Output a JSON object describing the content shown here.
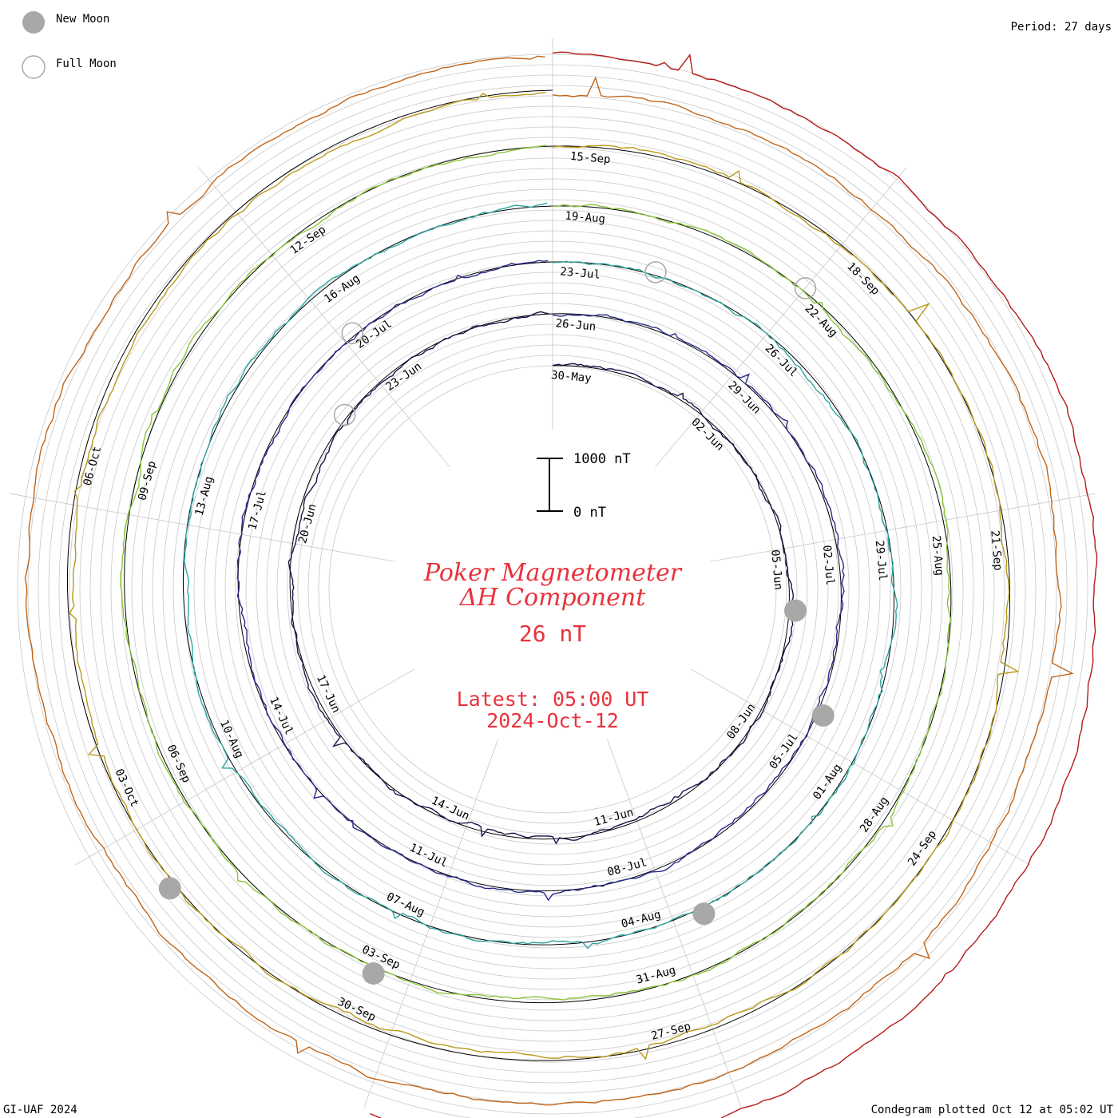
{
  "legend": {
    "new_moon": "New Moon",
    "full_moon": "Full Moon"
  },
  "period": "Period: 27 days",
  "scale_bar": {
    "top_label": "1000 nT",
    "bottom_label": "0 nT",
    "top_value": 1000,
    "bottom_value": 0
  },
  "title_line1": "Poker Magnetometer",
  "title_line2": "ΔH Component",
  "current_value": "26 nT",
  "latest_line1": "Latest: 05:00 UT",
  "latest_line2": "2024-Oct-12",
  "footer_left": "GI-UAF 2024",
  "footer_right": "Condegram plotted Oct 12 at 05:02 UT",
  "colors": {
    "annotation": "#e8323c",
    "ring_grid": "#c8c8c8",
    "spokes": "#c8c8c8",
    "moon_fill": "#a8a8a8",
    "moon_stroke": "#a8a8a8"
  },
  "chart_data": {
    "type": "condegram",
    "period_days": 27,
    "units": "nT",
    "date_labels": [
      [
        "30-May",
        "02-Jun",
        "05-Jun",
        "08-Jun",
        "11-Jun",
        "14-Jun",
        "17-Jun",
        "20-Jun",
        "23-Jun"
      ],
      [
        "26-Jun",
        "29-Jun",
        "02-Jul",
        "05-Jul",
        "08-Jul",
        "11-Jul",
        "14-Jul",
        "17-Jul",
        "20-Jul"
      ],
      [
        "23-Jul",
        "26-Jul",
        "29-Jul",
        "01-Aug",
        "04-Aug",
        "07-Aug",
        "10-Aug",
        "13-Aug",
        "16-Aug"
      ],
      [
        "19-Aug",
        "22-Aug",
        "25-Aug",
        "28-Aug",
        "31-Aug",
        "03-Sep",
        "06-Sep",
        "09-Sep",
        "12-Sep"
      ],
      [
        "15-Sep",
        "18-Sep",
        "21-Sep",
        "24-Sep",
        "27-Sep",
        "30-Sep",
        "03-Oct",
        "06-Oct"
      ]
    ],
    "series": [
      {
        "color": "#17174a",
        "start": "2024-05-29"
      },
      {
        "color": "#2a2a8e",
        "start": "2024-06-25"
      },
      {
        "color": "#2e6fb0",
        "start": "2024-07-22"
      },
      {
        "color": "#2fb892",
        "start": "2024-08-18"
      },
      {
        "color": "#8cc43a",
        "start": "2024-09-14"
      },
      {
        "color": "#b89a1c",
        "start": "2024-09-14"
      },
      {
        "color": "#c0651a",
        "start": "2024-09-14"
      },
      {
        "color": "#b41a1a",
        "start": "2024-10-11"
      }
    ],
    "new_moons": [
      "2024-06-06",
      "2024-07-05",
      "2024-08-04",
      "2024-09-03",
      "2024-10-02"
    ],
    "full_moons": [
      "2024-06-22",
      "2024-07-21",
      "2024-08-19",
      "2024-09-18"
    ]
  }
}
